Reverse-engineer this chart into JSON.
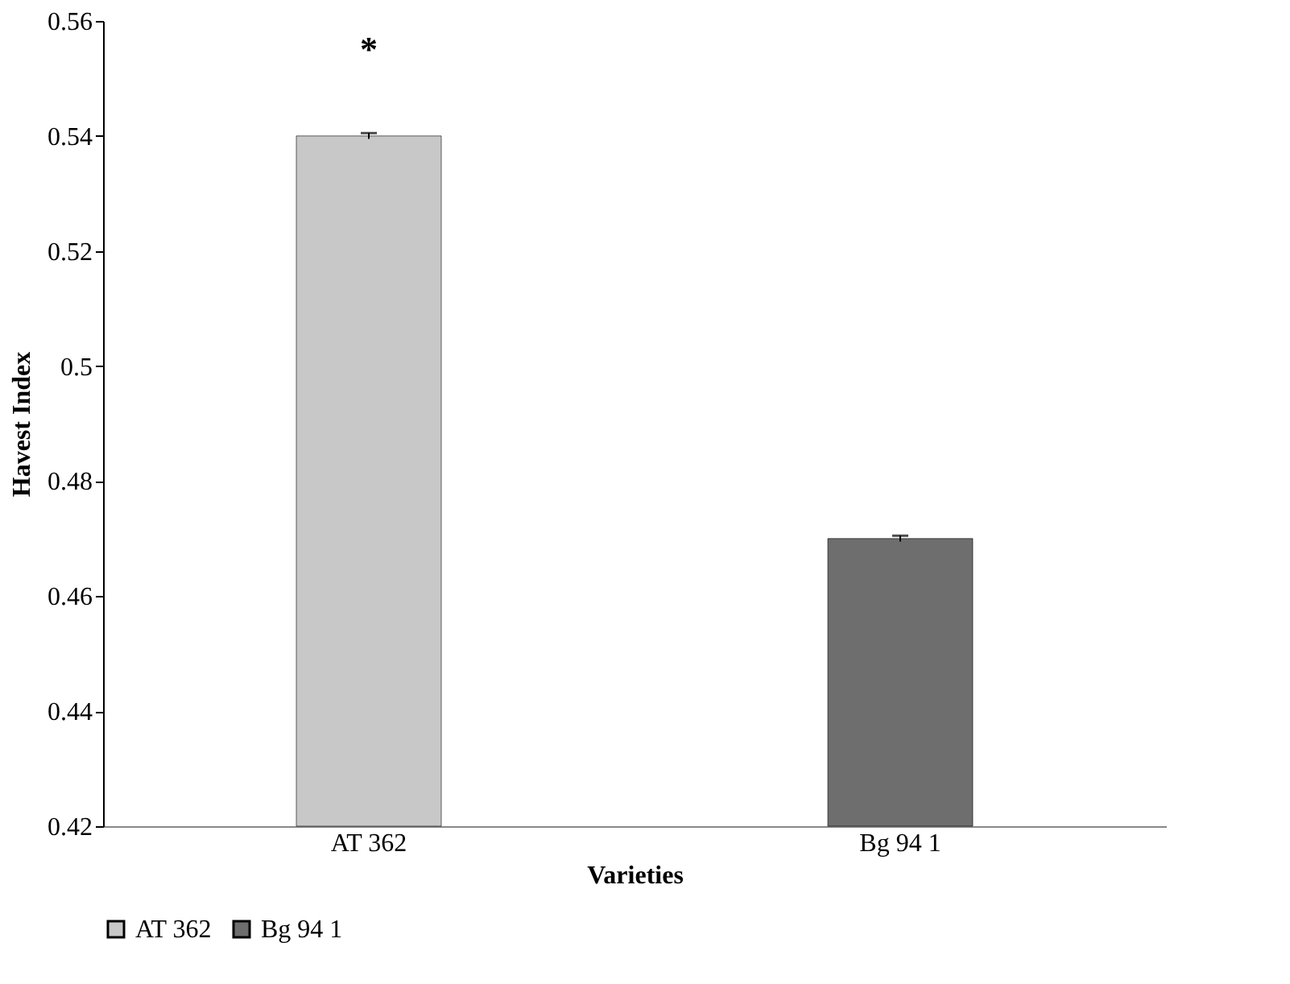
{
  "chart_data": {
    "type": "bar",
    "xlabel": "Varieties",
    "ylabel": "Havest Index",
    "categories": [
      "AT 362",
      "Bg 94 1"
    ],
    "series": [
      {
        "name": "AT 362",
        "color": "#c8c8c8",
        "values": [
          0.54,
          null
        ],
        "errors": [
          0.0005,
          null
        ]
      },
      {
        "name": "Bg 94 1",
        "color": "#6e6e6e",
        "values": [
          null,
          0.47
        ],
        "errors": [
          null,
          0.0005
        ]
      }
    ],
    "ylim": [
      0.42,
      0.56
    ],
    "yticks": [
      0.42,
      0.44,
      0.46,
      0.48,
      {
        "value": 0.5,
        "label": "0.5"
      },
      0.52,
      0.54,
      0.56
    ],
    "annotations": [
      "*"
    ],
    "grid": false,
    "legend": "bottom"
  }
}
